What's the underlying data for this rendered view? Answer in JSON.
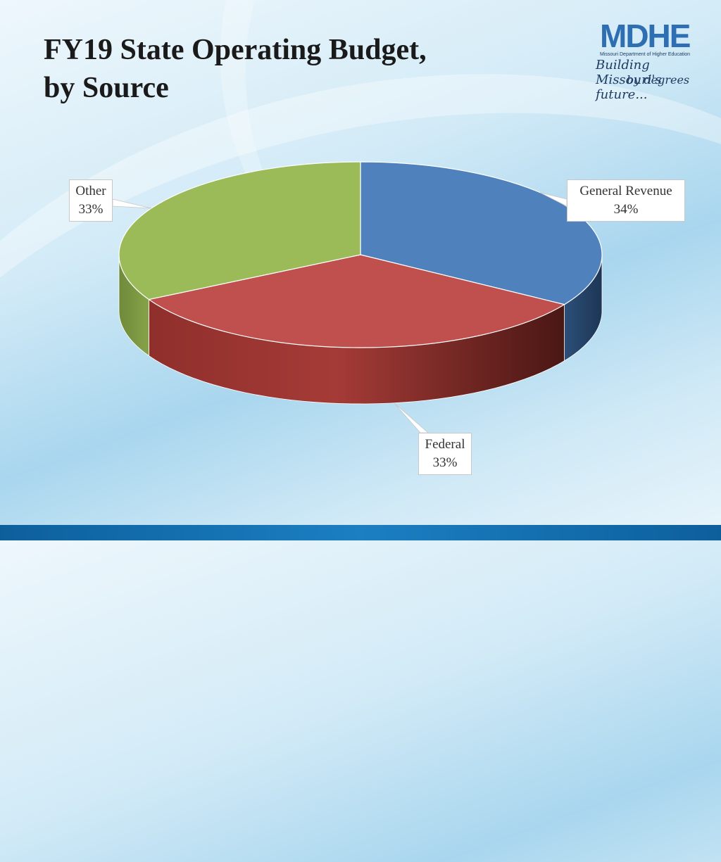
{
  "title": {
    "line1": "FY19 State Operating Budget,",
    "line2": "by Source"
  },
  "logo": {
    "mark": "MDHE",
    "subtitle": "Missouri Department of Higher Education",
    "tagline1": "Building Missouri's future...",
    "tagline2": "by degrees"
  },
  "chart_data": {
    "type": "pie",
    "style": "3d",
    "categories": [
      "General Revenue",
      "Federal",
      "Other"
    ],
    "values": [
      34,
      33,
      33
    ],
    "labels": [
      "34%",
      "33%",
      "33%"
    ],
    "colors": [
      "#4f81bd",
      "#c0504d",
      "#9bbb59"
    ],
    "title": "",
    "legend": "none"
  }
}
